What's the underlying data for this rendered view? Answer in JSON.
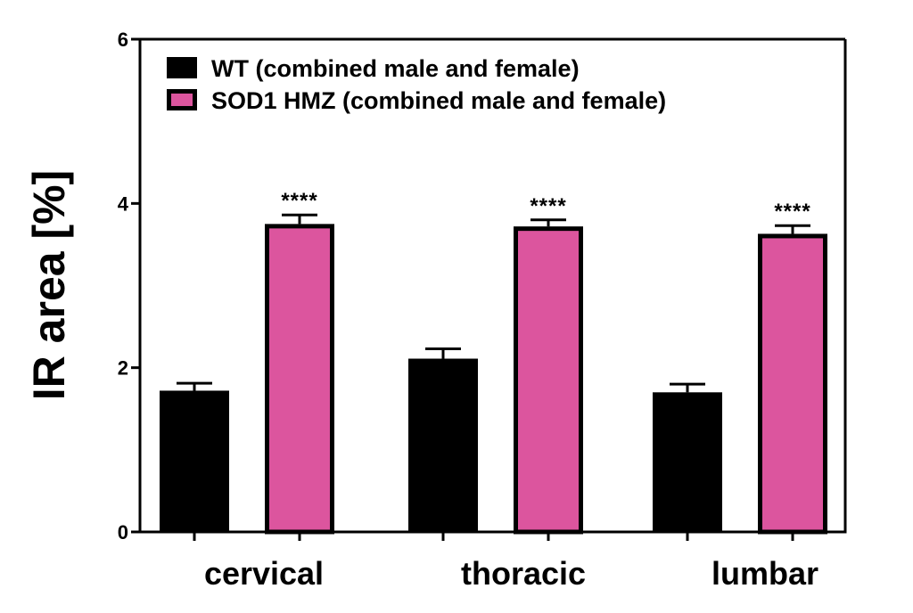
{
  "chart_data": {
    "type": "bar",
    "title": "",
    "xlabel": "",
    "ylabel": "IR area [%]",
    "ylim": [
      0,
      6
    ],
    "yticks": [
      0,
      2,
      4,
      6
    ],
    "categories": [
      "cervical",
      "thoracic",
      "lumbar"
    ],
    "series": [
      {
        "name": "WT (combined male and female)",
        "color": "#000000",
        "values": [
          1.72,
          2.11,
          1.7
        ],
        "errors": [
          0.09,
          0.12,
          0.1
        ]
      },
      {
        "name": "SOD1 HMZ (combined male and female)",
        "color": "#DC559E",
        "values": [
          3.75,
          3.72,
          3.63
        ],
        "errors": [
          0.11,
          0.08,
          0.1
        ]
      }
    ],
    "annotations": [
      {
        "category": "cervical",
        "series": "SOD1 HMZ (combined male and female)",
        "text": "****"
      },
      {
        "category": "thoracic",
        "series": "SOD1 HMZ (combined male and female)",
        "text": "****"
      },
      {
        "category": "lumbar",
        "series": "SOD1 HMZ (combined male and female)",
        "text": "****"
      }
    ],
    "legend_position": "top-left",
    "grid": false
  }
}
